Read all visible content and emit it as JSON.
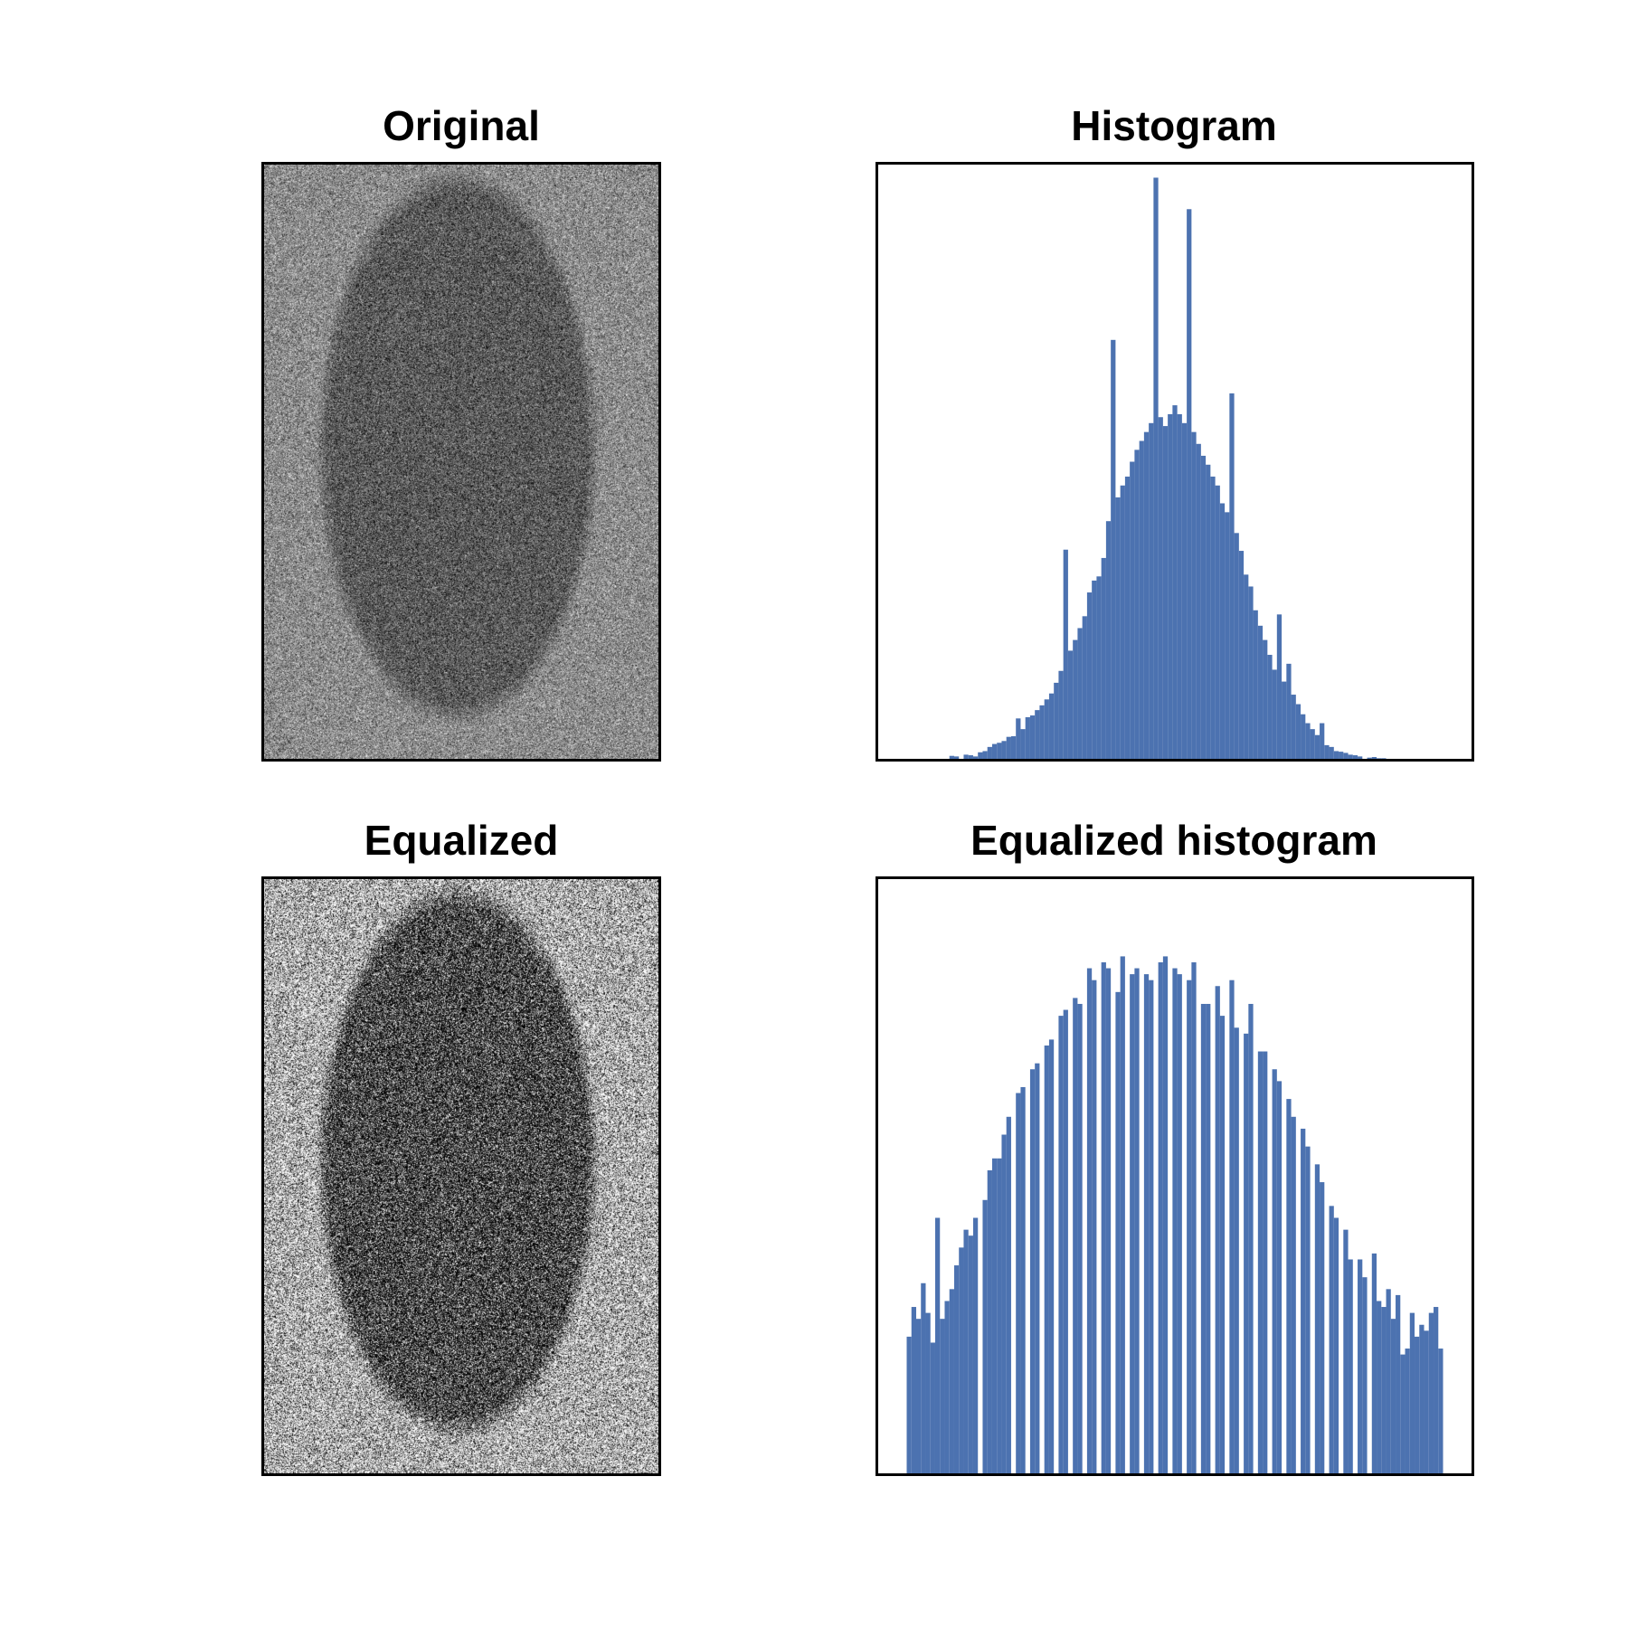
{
  "panels": {
    "original": {
      "title": "Original"
    },
    "histogram": {
      "title": "Histogram"
    },
    "equalized": {
      "title": "Equalized"
    },
    "equalized_histogram": {
      "title": "Equalized histogram"
    }
  },
  "colors": {
    "bar": "#4c72b0",
    "frame": "#000000",
    "background": "#ffffff"
  },
  "chart_data": [
    {
      "type": "image",
      "title": "Original",
      "description_tag": "grayscale",
      "axes": "off"
    },
    {
      "type": "bar",
      "title": "Histogram",
      "xlabel": "",
      "ylabel": "",
      "axes_ticks": "off",
      "xlim": [
        0,
        125
      ],
      "ylim": [
        0,
        1.0
      ],
      "x": [
        15,
        16,
        17,
        18,
        19,
        20,
        21,
        22,
        23,
        24,
        25,
        26,
        27,
        28,
        29,
        30,
        31,
        32,
        33,
        34,
        35,
        36,
        37,
        38,
        39,
        40,
        41,
        42,
        43,
        44,
        45,
        46,
        47,
        48,
        49,
        50,
        51,
        52,
        53,
        54,
        55,
        56,
        57,
        58,
        59,
        60,
        61,
        62,
        63,
        64,
        65,
        66,
        67,
        68,
        69,
        70,
        71,
        72,
        73,
        74,
        75,
        76,
        77,
        78,
        79,
        80,
        81,
        82,
        83,
        84,
        85,
        86,
        87,
        88,
        89,
        90,
        91,
        92,
        93,
        94,
        95,
        96,
        97,
        98,
        99,
        100,
        101,
        102,
        103,
        104,
        105,
        106,
        107,
        108
      ],
      "values": [
        0.005,
        0.004,
        0.0,
        0.007,
        0.006,
        0.004,
        0.011,
        0.013,
        0.02,
        0.025,
        0.027,
        0.03,
        0.037,
        0.038,
        0.068,
        0.05,
        0.07,
        0.073,
        0.082,
        0.09,
        0.1,
        0.11,
        0.128,
        0.148,
        0.352,
        0.182,
        0.2,
        0.22,
        0.24,
        0.28,
        0.3,
        0.307,
        0.338,
        0.4,
        0.705,
        0.44,
        0.46,
        0.475,
        0.5,
        0.52,
        0.535,
        0.55,
        0.565,
        0.978,
        0.575,
        0.56,
        0.58,
        0.595,
        0.58,
        0.565,
        0.925,
        0.55,
        0.53,
        0.51,
        0.495,
        0.475,
        0.46,
        0.43,
        0.415,
        0.615,
        0.38,
        0.35,
        0.31,
        0.29,
        0.25,
        0.224,
        0.2,
        0.175,
        0.15,
        0.243,
        0.13,
        0.16,
        0.108,
        0.092,
        0.075,
        0.06,
        0.05,
        0.04,
        0.06,
        0.023,
        0.02,
        0.013,
        0.012,
        0.01,
        0.007,
        0.006,
        0.004,
        0.0,
        0.002,
        0.003,
        0.001,
        0.001,
        0.0,
        0.0
      ]
    },
    {
      "type": "image",
      "title": "Equalized",
      "axes": "off"
    },
    {
      "type": "bar",
      "title": "Equalized histogram",
      "xlabel": "",
      "ylabel": "",
      "axes_ticks": "off",
      "xlim": [
        0,
        125
      ],
      "ylim": [
        0,
        1.0
      ],
      "x": [
        6,
        7,
        8,
        9,
        10,
        11,
        12,
        13,
        14,
        15,
        16,
        17,
        18,
        19,
        20,
        22,
        23,
        24,
        25,
        26,
        27,
        29,
        30,
        32,
        33,
        35,
        36,
        38,
        39,
        41,
        42,
        44,
        45,
        47,
        48,
        50,
        51,
        53,
        54,
        56,
        57,
        59,
        60,
        62,
        63,
        65,
        66,
        68,
        69,
        71,
        72,
        74,
        75,
        77,
        78,
        80,
        81,
        83,
        84,
        86,
        87,
        89,
        90,
        92,
        93,
        95,
        96,
        98,
        99,
        101,
        102,
        104,
        105,
        106,
        107,
        108,
        109,
        110,
        111,
        112,
        113,
        114,
        115,
        116,
        117,
        118
      ],
      "values": [
        0.23,
        0.28,
        0.26,
        0.32,
        0.27,
        0.22,
        0.43,
        0.26,
        0.29,
        0.31,
        0.35,
        0.38,
        0.41,
        0.4,
        0.43,
        0.46,
        0.51,
        0.53,
        0.53,
        0.57,
        0.6,
        0.64,
        0.65,
        0.68,
        0.69,
        0.72,
        0.73,
        0.77,
        0.78,
        0.8,
        0.79,
        0.85,
        0.83,
        0.86,
        0.85,
        0.81,
        0.87,
        0.84,
        0.85,
        0.84,
        0.83,
        0.86,
        0.87,
        0.85,
        0.84,
        0.83,
        0.86,
        0.79,
        0.79,
        0.82,
        0.77,
        0.83,
        0.75,
        0.74,
        0.79,
        0.71,
        0.71,
        0.68,
        0.66,
        0.63,
        0.6,
        0.58,
        0.55,
        0.52,
        0.49,
        0.45,
        0.43,
        0.41,
        0.36,
        0.36,
        0.33,
        0.37,
        0.29,
        0.28,
        0.31,
        0.26,
        0.3,
        0.2,
        0.21,
        0.27,
        0.23,
        0.25,
        0.24,
        0.27,
        0.28,
        0.21
      ]
    }
  ]
}
